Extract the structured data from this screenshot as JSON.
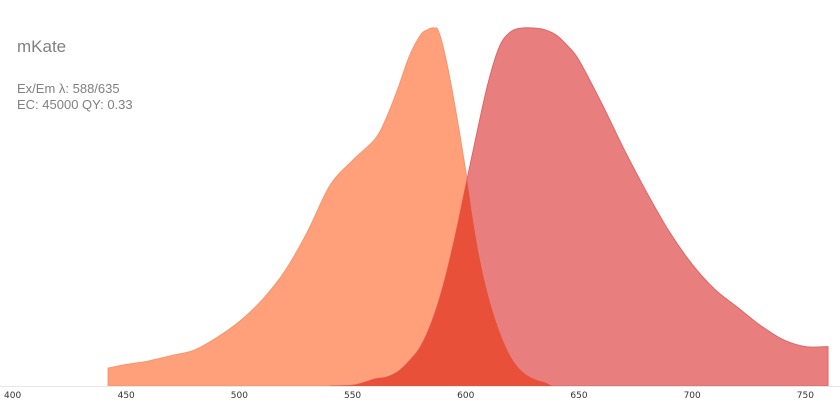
{
  "chart_data": {
    "type": "area",
    "title": "mKate",
    "info_line1": "Ex/Em λ: 588/635",
    "info_line2": "EC: 45000  QY: 0.33",
    "xlabel": "",
    "ylabel": "",
    "xlim": [
      400,
      760
    ],
    "ylim": [
      0,
      1
    ],
    "x_ticks": [
      400,
      450,
      500,
      550,
      600,
      650,
      700,
      750
    ],
    "x_tick_labels": [
      "400",
      "450",
      "500",
      "550",
      "600",
      "650",
      "700",
      "750"
    ],
    "grid": false,
    "legend": "none",
    "overlap_color": "#e8503a",
    "series": [
      {
        "kind": "excitation",
        "color": "#ffa07a",
        "stroke": "#f7946c",
        "x": [
          442,
          450,
          460,
          470,
          480,
          490,
          500,
          510,
          520,
          530,
          540,
          550,
          560,
          565,
          570,
          575,
          580,
          583,
          586,
          588,
          591,
          595,
          600,
          603,
          606,
          610,
          615,
          620,
          625,
          630,
          635,
          638
        ],
        "y": [
          0.05,
          0.06,
          0.07,
          0.085,
          0.1,
          0.135,
          0.18,
          0.24,
          0.32,
          0.43,
          0.56,
          0.63,
          0.69,
          0.75,
          0.83,
          0.92,
          0.98,
          0.995,
          1.0,
          0.99,
          0.92,
          0.79,
          0.6,
          0.47,
          0.36,
          0.25,
          0.15,
          0.08,
          0.04,
          0.02,
          0.01,
          0.0
        ]
      },
      {
        "kind": "emission",
        "color": "#e97e7e",
        "stroke": "#df6565",
        "x": [
          540,
          550,
          555,
          560,
          565,
          570,
          575,
          580,
          585,
          590,
          595,
          600,
          605,
          610,
          615,
          620,
          625,
          630,
          635,
          640,
          645,
          650,
          660,
          670,
          680,
          690,
          700,
          710,
          720,
          730,
          740,
          750,
          760
        ],
        "y": [
          0.0,
          0.002,
          0.01,
          0.02,
          0.025,
          0.04,
          0.07,
          0.11,
          0.18,
          0.28,
          0.41,
          0.56,
          0.71,
          0.85,
          0.95,
          0.99,
          1.0,
          1.0,
          0.995,
          0.98,
          0.95,
          0.91,
          0.79,
          0.66,
          0.54,
          0.43,
          0.34,
          0.27,
          0.22,
          0.17,
          0.13,
          0.11,
          0.11
        ]
      }
    ]
  }
}
